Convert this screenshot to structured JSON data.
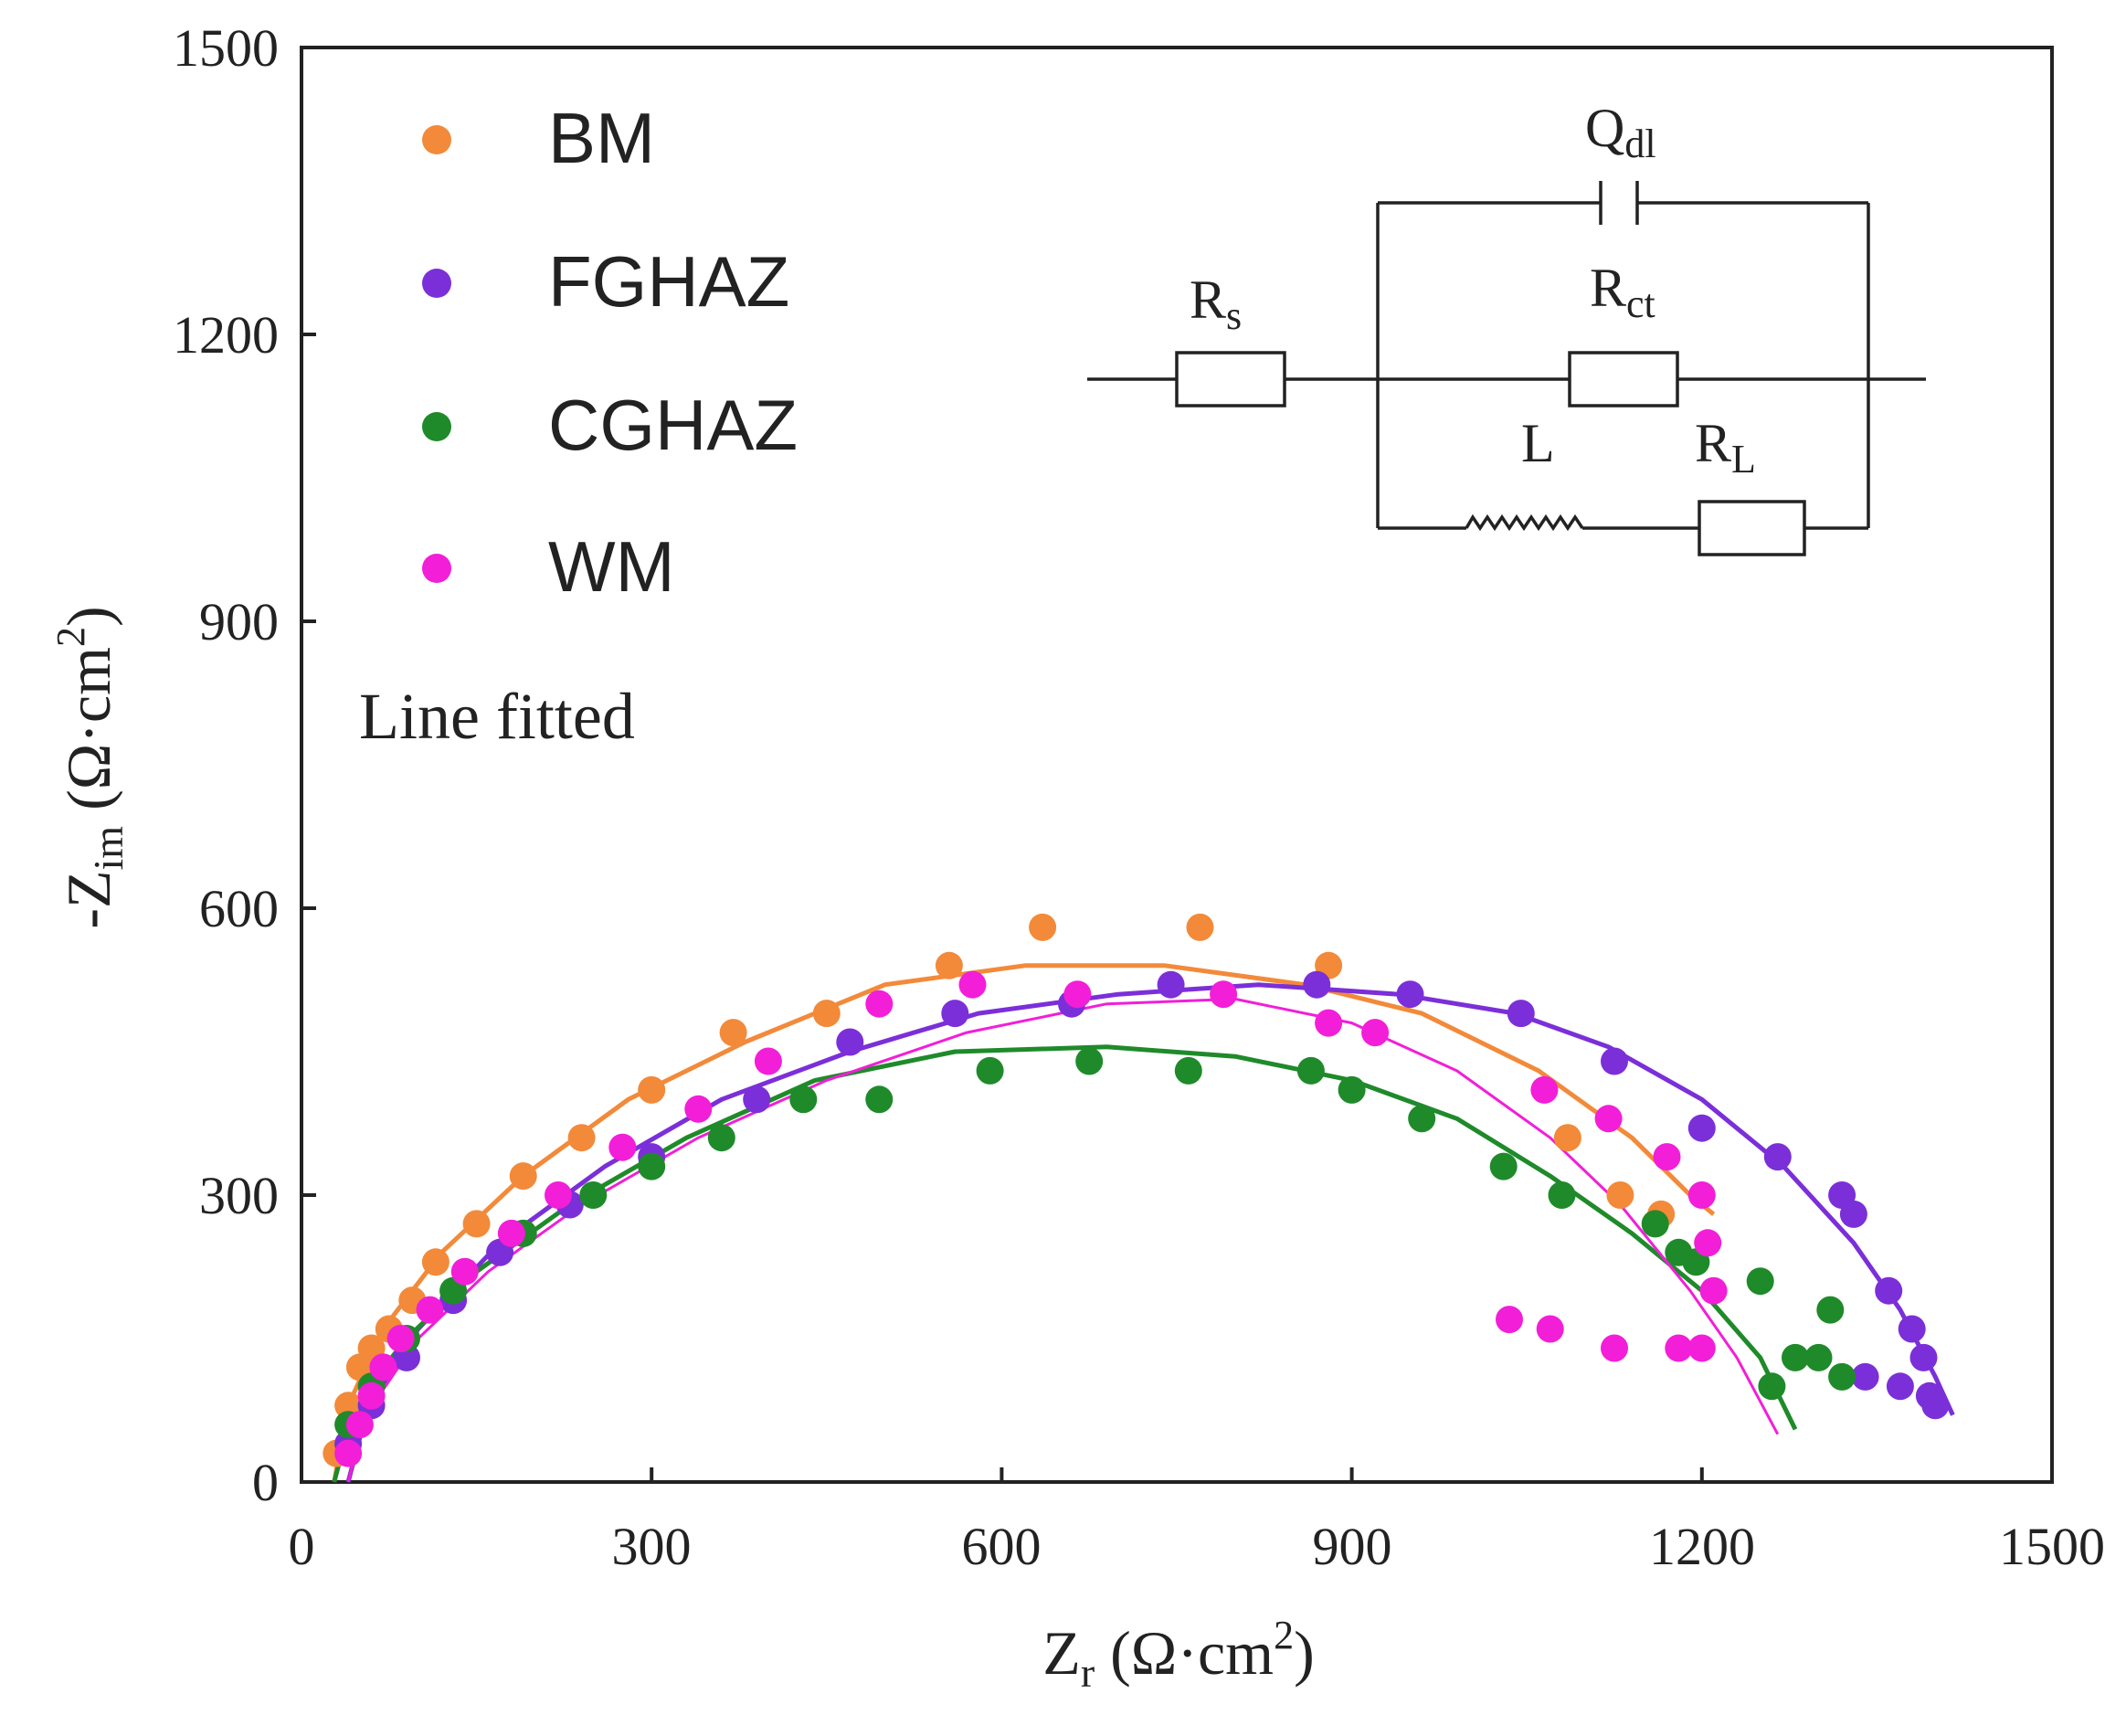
{
  "chart_data": {
    "type": "scatter",
    "title": "",
    "xlabel_main": "Z",
    "xlabel_sub": "r",
    "xlabel_unit": " (Ω·cm",
    "xlabel_sup": "2",
    "xlabel_close": ")",
    "ylabel_main": "-Z",
    "ylabel_sub": "im",
    "ylabel_unit": " (Ω·cm",
    "ylabel_sup": "2",
    "ylabel_close": ")",
    "xlim": [
      0,
      1500
    ],
    "ylim": [
      0,
      1500
    ],
    "xticks": [
      "0",
      "300",
      "600",
      "900",
      "1200",
      "1500"
    ],
    "yticks": [
      "0",
      "300",
      "600",
      "900",
      "1200",
      "1500"
    ],
    "legend_note": "Line fitted",
    "series": [
      {
        "name": "BM",
        "color": "#f28a3a",
        "points": [
          [
            30,
            30
          ],
          [
            40,
            80
          ],
          [
            50,
            120
          ],
          [
            60,
            140
          ],
          [
            75,
            160
          ],
          [
            95,
            190
          ],
          [
            115,
            230
          ],
          [
            150,
            270
          ],
          [
            190,
            320
          ],
          [
            240,
            360
          ],
          [
            300,
            410
          ],
          [
            370,
            470
          ],
          [
            450,
            490
          ],
          [
            555,
            540
          ],
          [
            635,
            580
          ],
          [
            770,
            580
          ],
          [
            880,
            540
          ],
          [
            1085,
            360
          ],
          [
            1130,
            300
          ],
          [
            1165,
            280
          ]
        ],
        "fit": [
          [
            28,
            0
          ],
          [
            40,
            80
          ],
          [
            70,
            160
          ],
          [
            120,
            240
          ],
          [
            190,
            320
          ],
          [
            280,
            400
          ],
          [
            380,
            460
          ],
          [
            500,
            520
          ],
          [
            620,
            540
          ],
          [
            740,
            540
          ],
          [
            860,
            520
          ],
          [
            960,
            490
          ],
          [
            1060,
            430
          ],
          [
            1140,
            360
          ],
          [
            1190,
            300
          ],
          [
            1210,
            280
          ]
        ]
      },
      {
        "name": "FGHAZ",
        "color": "#7b2fd8",
        "points": [
          [
            40,
            40
          ],
          [
            60,
            80
          ],
          [
            90,
            130
          ],
          [
            130,
            190
          ],
          [
            170,
            240
          ],
          [
            230,
            290
          ],
          [
            300,
            340
          ],
          [
            390,
            400
          ],
          [
            470,
            460
          ],
          [
            560,
            490
          ],
          [
            660,
            500
          ],
          [
            745,
            520
          ],
          [
            870,
            520
          ],
          [
            950,
            510
          ],
          [
            1045,
            490
          ],
          [
            1125,
            440
          ],
          [
            1200,
            370
          ],
          [
            1265,
            340
          ],
          [
            1320,
            300
          ],
          [
            1330,
            280
          ],
          [
            1360,
            200
          ],
          [
            1380,
            160
          ],
          [
            1390,
            130
          ],
          [
            1395,
            90
          ],
          [
            1400,
            80
          ],
          [
            1370,
            100
          ],
          [
            1340,
            110
          ]
        ],
        "fit": [
          [
            40,
            0
          ],
          [
            55,
            70
          ],
          [
            100,
            160
          ],
          [
            170,
            250
          ],
          [
            260,
            330
          ],
          [
            360,
            400
          ],
          [
            470,
            450
          ],
          [
            580,
            490
          ],
          [
            700,
            510
          ],
          [
            820,
            520
          ],
          [
            940,
            510
          ],
          [
            1040,
            490
          ],
          [
            1120,
            455
          ],
          [
            1200,
            400
          ],
          [
            1270,
            330
          ],
          [
            1330,
            250
          ],
          [
            1370,
            180
          ],
          [
            1400,
            110
          ],
          [
            1415,
            70
          ]
        ]
      },
      {
        "name": "CGHAZ",
        "color": "#1f8a2a",
        "points": [
          [
            40,
            60
          ],
          [
            60,
            100
          ],
          [
            90,
            150
          ],
          [
            130,
            200
          ],
          [
            190,
            260
          ],
          [
            250,
            300
          ],
          [
            300,
            330
          ],
          [
            360,
            360
          ],
          [
            430,
            400
          ],
          [
            495,
            400
          ],
          [
            590,
            430
          ],
          [
            675,
            440
          ],
          [
            760,
            430
          ],
          [
            865,
            430
          ],
          [
            900,
            410
          ],
          [
            960,
            380
          ],
          [
            1030,
            330
          ],
          [
            1080,
            300
          ],
          [
            1160,
            270
          ],
          [
            1180,
            240
          ],
          [
            1195,
            230
          ],
          [
            1250,
            210
          ],
          [
            1310,
            180
          ],
          [
            1260,
            100
          ],
          [
            1280,
            130
          ],
          [
            1300,
            130
          ],
          [
            1320,
            110
          ]
        ],
        "fit": [
          [
            28,
            0
          ],
          [
            45,
            80
          ],
          [
            90,
            150
          ],
          [
            150,
            220
          ],
          [
            230,
            290
          ],
          [
            330,
            360
          ],
          [
            440,
            420
          ],
          [
            560,
            450
          ],
          [
            690,
            455
          ],
          [
            800,
            445
          ],
          [
            900,
            420
          ],
          [
            990,
            380
          ],
          [
            1070,
            320
          ],
          [
            1140,
            260
          ],
          [
            1200,
            200
          ],
          [
            1250,
            130
          ],
          [
            1280,
            55
          ]
        ]
      },
      {
        "name": "WM",
        "color": "#f21ed8",
        "points": [
          [
            40,
            30
          ],
          [
            50,
            60
          ],
          [
            60,
            90
          ],
          [
            70,
            120
          ],
          [
            85,
            150
          ],
          [
            110,
            180
          ],
          [
            140,
            220
          ],
          [
            180,
            260
          ],
          [
            220,
            300
          ],
          [
            275,
            350
          ],
          [
            340,
            390
          ],
          [
            400,
            440
          ],
          [
            495,
            500
          ],
          [
            575,
            520
          ],
          [
            665,
            510
          ],
          [
            790,
            510
          ],
          [
            880,
            480
          ],
          [
            920,
            470
          ],
          [
            1065,
            410
          ],
          [
            1120,
            380
          ],
          [
            1170,
            340
          ],
          [
            1200,
            300
          ],
          [
            1205,
            250
          ],
          [
            1210,
            200
          ],
          [
            1035,
            170
          ],
          [
            1070,
            160
          ],
          [
            1125,
            140
          ],
          [
            1180,
            140
          ],
          [
            1200,
            140
          ]
        ],
        "fit": [
          [
            40,
            0
          ],
          [
            55,
            70
          ],
          [
            100,
            150
          ],
          [
            160,
            220
          ],
          [
            240,
            290
          ],
          [
            340,
            360
          ],
          [
            450,
            420
          ],
          [
            570,
            470
          ],
          [
            690,
            500
          ],
          [
            800,
            505
          ],
          [
            900,
            480
          ],
          [
            990,
            430
          ],
          [
            1070,
            360
          ],
          [
            1130,
            290
          ],
          [
            1190,
            200
          ],
          [
            1230,
            130
          ],
          [
            1265,
            50
          ]
        ]
      }
    ],
    "circuit": {
      "rs_main": "R",
      "rs_sub": "s",
      "q_main": "Q",
      "q_sub": "dl",
      "rct_main": "R",
      "rct_sub": "ct",
      "l_label": "L",
      "rl_main": "R",
      "rl_sub": "L"
    }
  }
}
